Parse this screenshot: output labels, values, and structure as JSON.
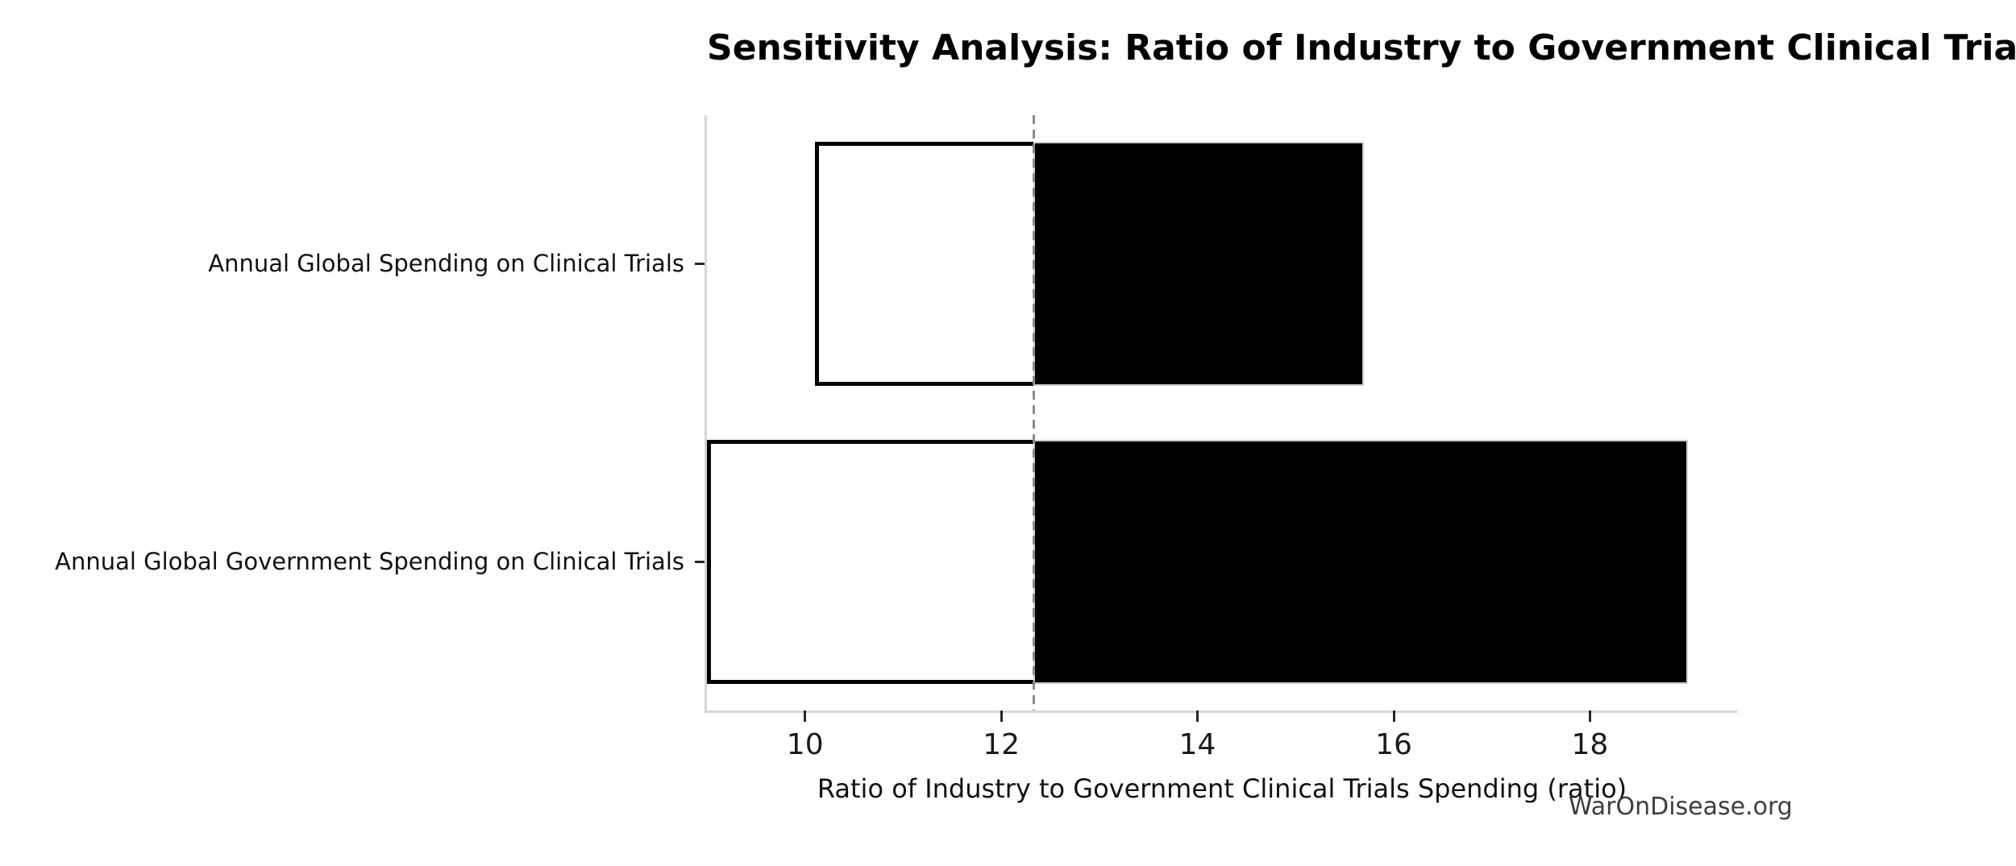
{
  "chart_data": {
    "type": "bar",
    "orientation": "horizontal",
    "variant": "tornado-sensitivity",
    "title": "Sensitivity Analysis: Ratio of Industry to Government Clinical Trials Spending",
    "xlabel": "Ratio of Industry to Government Clinical Trials Spending (ratio)",
    "watermark": "WarOnDisease.org",
    "categories": [
      "Annual Global Spending on Clinical Trials",
      "Annual Global Government Spending on Clinical Trials"
    ],
    "baseline": 12.33,
    "bars": [
      {
        "label": "Annual Global Spending on Clinical Trials",
        "low": 10.1,
        "high": 15.7
      },
      {
        "label": "Annual Global Government Spending on Clinical Trials",
        "low": 9.0,
        "high": 19.0
      }
    ],
    "xlim": [
      9.0,
      19.5
    ],
    "xticks": [
      10,
      12,
      14,
      16,
      18
    ],
    "xtick_labels": [
      "10",
      "12",
      "14",
      "16",
      "18"
    ],
    "grid": false,
    "legend": null,
    "colors": {
      "bar_below_baseline_fill": "#ffffff",
      "bar_below_baseline_edge": "#000000",
      "bar_above_baseline_fill": "#000000",
      "bar_above_baseline_edge": "#cccccc",
      "baseline_line": "#8a8a8a",
      "spine": "#d6d6d6",
      "tick": "#262626",
      "text": "#000000",
      "watermark": "#3d3d3d"
    }
  }
}
